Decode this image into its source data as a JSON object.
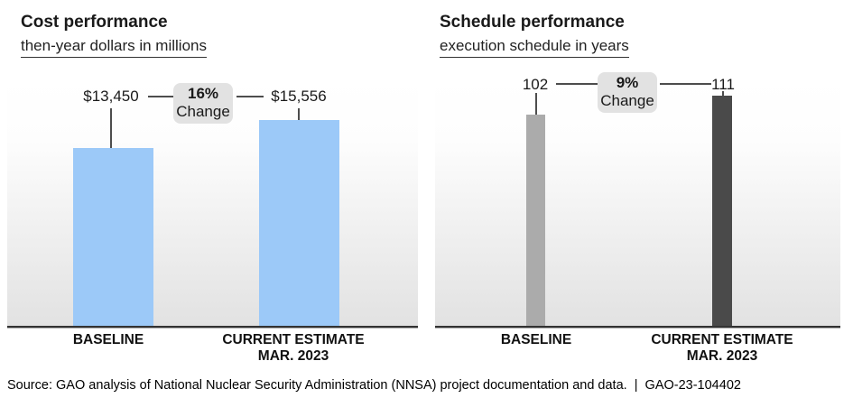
{
  "chart_data": [
    {
      "type": "bar",
      "title": "Cost performance",
      "subtitle": "then-year dollars in millions",
      "categories": [
        "BASELINE",
        "CURRENT ESTIMATE MAR. 2023"
      ],
      "cat_baseline": "BASELINE",
      "cat_current_line1": "CURRENT ESTIMATE",
      "cat_current_line2": "MAR. 2023",
      "values": [
        13450,
        15556
      ],
      "value_labels": [
        "$13,450",
        "$15,556"
      ],
      "pct_change": "16%",
      "pct_change_word": "Change",
      "bar_colors": [
        "#9cc9f8",
        "#9cc9f8"
      ],
      "xlabel": "",
      "ylabel": "then-year dollars in millions",
      "ylim": [
        0,
        18600
      ],
      "grid": false,
      "legend": "none"
    },
    {
      "type": "bar",
      "title": "Schedule performance",
      "subtitle": "execution schedule in years",
      "categories": [
        "BASELINE",
        "CURRENT ESTIMATE MAR. 2023"
      ],
      "cat_baseline": "BASELINE",
      "cat_current_line1": "CURRENT ESTIMATE",
      "cat_current_line2": "MAR. 2023",
      "values": [
        102,
        111
      ],
      "value_labels": [
        "102",
        "111"
      ],
      "pct_change": "9%",
      "pct_change_word": "Change",
      "bar_colors": [
        "#ababab",
        "#4a4a4a"
      ],
      "xlabel": "",
      "ylabel": "execution schedule in years",
      "ylim": [
        0,
        119
      ],
      "grid": false,
      "legend": "none"
    }
  ],
  "colors": {
    "cost_bar": "#9cc9f8",
    "schedule_baseline_bar": "#ababab",
    "schedule_current_bar": "#4a4a4a",
    "badge_background": "#e2e2e2",
    "axis_line": "#333333",
    "leader_line": "#4d4d4d"
  },
  "source_line": "Source: GAO analysis of National Nuclear Security Administration (NNSA) project documentation and data.  |  GAO-23-104402"
}
